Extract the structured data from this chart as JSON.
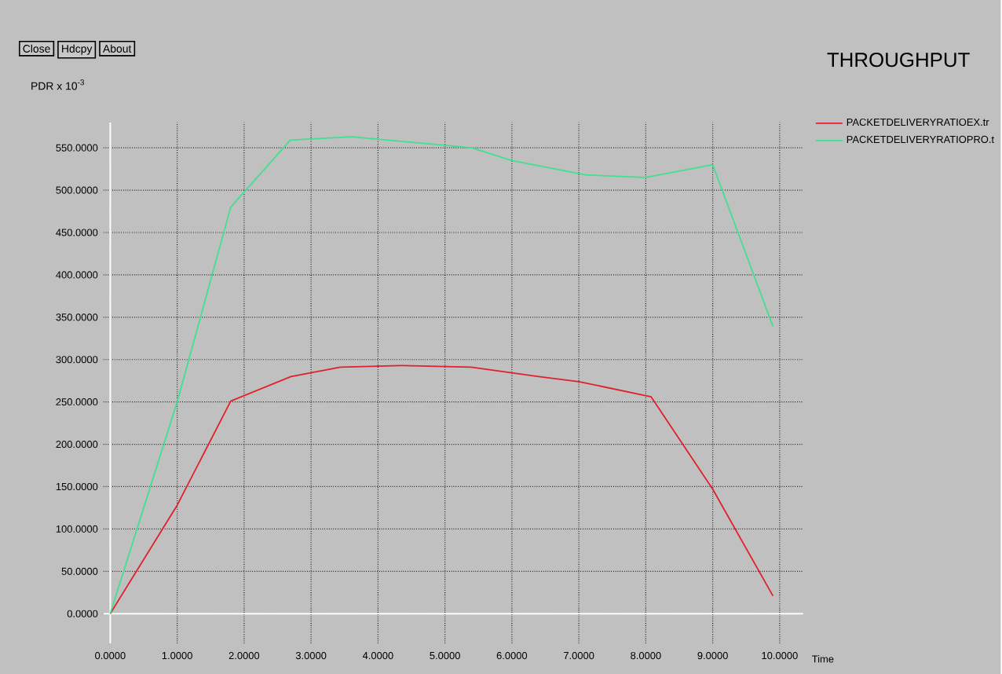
{
  "chart_data": {
    "type": "line",
    "title": "THROUGHPUT",
    "xlabel": "Time",
    "ylabel": "PDR x 10$^{-3}$",
    "annotations": [
      "Close",
      "Hdcpy",
      "About"
    ],
    "series": [
      {
        "name": "PACKETDELIVERYRATIOEX.tr",
        "color": "#e0202a",
        "x": [
          0,
          1.0,
          1.8,
          2.7,
          3.44,
          4.38,
          5.39,
          6.4,
          7.0,
          8.08,
          9.0,
          9.9
        ],
        "values": [
          0,
          128,
          251,
          280,
          291,
          293,
          291,
          280,
          274,
          256,
          147,
          21
        ]
      },
      {
        "name": "PACKETDELIVERYRATIOPRO.t",
        "color": "#40e090",
        "x": [
          0,
          1.0,
          1.8,
          2.69,
          3.6,
          5.4,
          6.0,
          7.1,
          8.0,
          9.0,
          9.9
        ],
        "values": [
          0,
          250,
          480,
          559,
          563,
          550,
          535,
          518,
          515,
          530,
          339
        ]
      }
    ],
    "xlim": [
      -0.1,
      10.35
    ],
    "ylim": [
      -35,
      580
    ],
    "xticks": [
      {
        "value": 0,
        "label": "0.0000"
      },
      {
        "value": 1,
        "label": "1.0000"
      },
      {
        "value": 2,
        "label": "2.0000"
      },
      {
        "value": 3,
        "label": "3.0000"
      },
      {
        "value": 4,
        "label": "4.0000"
      },
      {
        "value": 5,
        "label": "5.0000"
      },
      {
        "value": 6,
        "label": "6.0000"
      },
      {
        "value": 7,
        "label": "7.0000"
      },
      {
        "value": 8,
        "label": "8.0000"
      },
      {
        "value": 9,
        "label": "9.0000"
      },
      {
        "value": 10,
        "label": "10.0000"
      }
    ],
    "yticks": [
      {
        "value": 0,
        "label": "0.0000"
      },
      {
        "value": 50,
        "label": "50.0000"
      },
      {
        "value": 100,
        "label": "100.0000"
      },
      {
        "value": 150,
        "label": "150.0000"
      },
      {
        "value": 200,
        "label": "200.0000"
      },
      {
        "value": 250,
        "label": "250.0000"
      },
      {
        "value": 300,
        "label": "300.0000"
      },
      {
        "value": 350,
        "label": "350.0000"
      },
      {
        "value": 400,
        "label": "400.0000"
      },
      {
        "value": 450,
        "label": "450.0000"
      },
      {
        "value": 500,
        "label": "500.0000"
      },
      {
        "value": 550,
        "label": "550.0000"
      }
    ],
    "grid": true,
    "legend": "top right",
    "marker": "none",
    "line_style": "solid"
  }
}
